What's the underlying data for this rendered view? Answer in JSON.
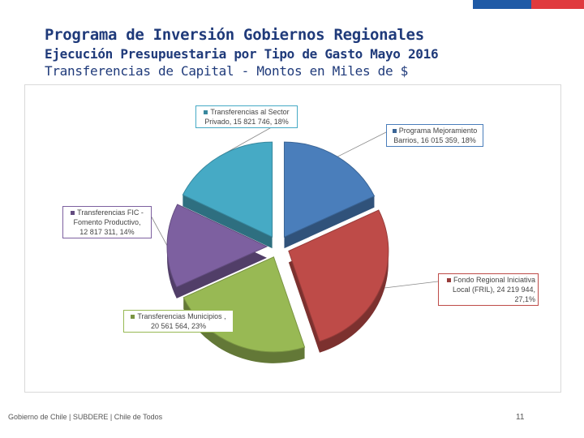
{
  "slide": {
    "title": "Programa de Inversión Gobiernos Regionales",
    "subtitle": "Ejecución Presupuestaria por Tipo de Gasto Mayo 2016",
    "subtitle2": "Transferencias de Capital - Montos en Miles de $",
    "footer": "Gobierno de Chile | SUBDERE | Chile de Todos",
    "page_number": "11"
  },
  "colors": {
    "brand_blue": "#1f5aa6",
    "brand_red": "#e03a3e",
    "title_blue": "#1f3a7a"
  },
  "chart_data": {
    "type": "pie",
    "title": "Transferencias de Capital - Montos en Miles de $",
    "series": [
      {
        "name": "Programa Mejoramiento Barrios",
        "value": 16015359,
        "percent": 18,
        "color": "#4a7ebb",
        "label_lines": [
          "Programa Mejoramiento",
          "Barrios,  16 015 359, 18%"
        ]
      },
      {
        "name": "Fondo Regional Iniciativa Local (FRIL)",
        "value": 24219944,
        "percent": 27.1,
        "color": "#be4b48",
        "label_lines": [
          "Fondo Regional Iniciativa",
          "Local (FRIL),  24 219 944,",
          "27,1%"
        ]
      },
      {
        "name": "Transferencias Municipios",
        "value": 20561564,
        "percent": 23,
        "color": "#98b954",
        "label_lines": [
          "Transferencias Municipios ,",
          "20 561 564, 23%"
        ]
      },
      {
        "name": "Transferencias FIC - Fomento Productivo",
        "value": 12817311,
        "percent": 14,
        "color": "#7d60a0",
        "label_lines": [
          "Transferencias FIC -",
          "Fomento Productivo,",
          "12 817 311, 14%"
        ]
      },
      {
        "name": "Transferencias al Sector Privado",
        "value": 15821746,
        "percent": 18,
        "color": "#46aac5",
        "label_lines": [
          "Transferencias al Sector",
          "Privado,  15 821 746, 18%"
        ]
      }
    ]
  }
}
